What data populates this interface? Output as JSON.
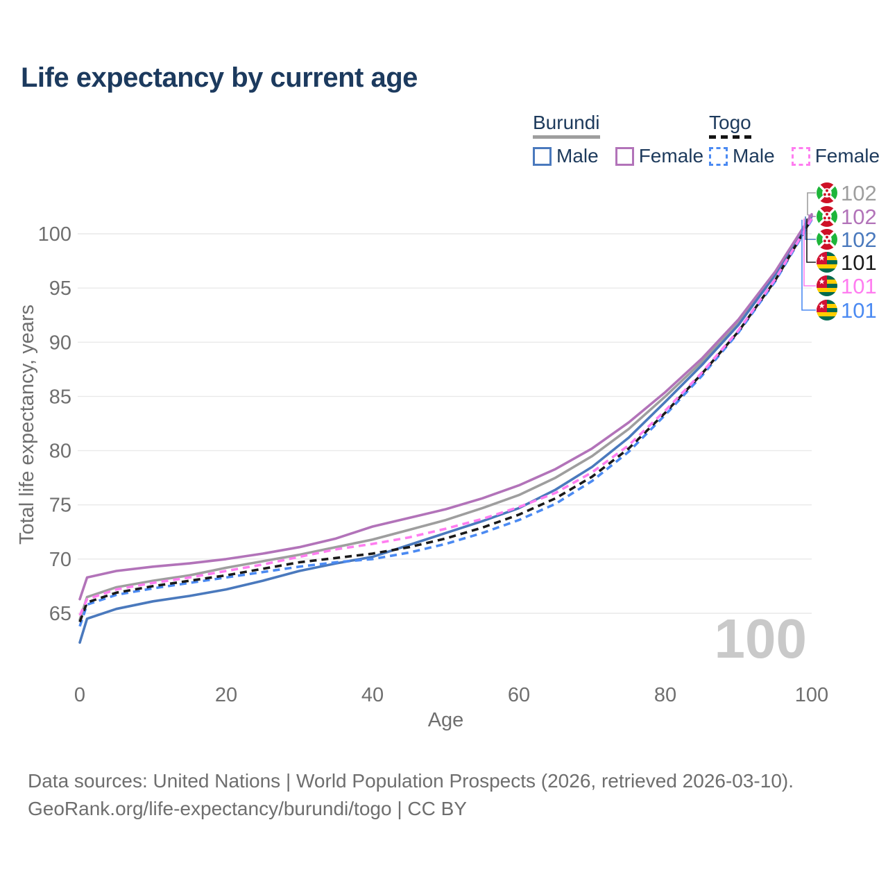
{
  "title": "Life expectancy by current age",
  "legend": {
    "position": "top-right",
    "groups": [
      {
        "country": "Burundi",
        "line_style": "solid",
        "underline_color": "#9e9e9e",
        "items": [
          {
            "label": "Male",
            "color": "#4a79bd",
            "dash": false
          },
          {
            "label": "Female",
            "color": "#b273b9",
            "dash": false
          }
        ]
      },
      {
        "country": "Togo",
        "line_style": "dashed",
        "underline_color": "#141414",
        "items": [
          {
            "label": "Male",
            "color": "#4b8af2",
            "dash": true
          },
          {
            "label": "Female",
            "color": "#ff7df0",
            "dash": true
          }
        ]
      }
    ]
  },
  "chart_data": {
    "type": "line",
    "title": "Life expectancy by current age",
    "xlabel": "Age",
    "ylabel": "Total life expectancy, years",
    "x_ticks": [
      0,
      20,
      40,
      60,
      80,
      100
    ],
    "y_ticks": [
      65,
      70,
      75,
      80,
      85,
      90,
      95,
      100
    ],
    "xlim": [
      0,
      100
    ],
    "ylim": [
      62,
      103
    ],
    "grid": "horizontal",
    "legend_position": "top-right",
    "watermark": "100",
    "x": [
      0,
      1,
      5,
      10,
      15,
      20,
      25,
      30,
      35,
      40,
      45,
      50,
      55,
      60,
      65,
      70,
      75,
      80,
      85,
      90,
      95,
      100
    ],
    "series": [
      {
        "id": "burundi-all",
        "name": "Burundi (all)",
        "country": "Burundi",
        "flag": "burundi",
        "color": "#9e9e9e",
        "dash": "solid",
        "end_label": "102",
        "values": [
          64.4,
          66.5,
          67.4,
          68.0,
          68.5,
          69.2,
          69.8,
          70.4,
          71.1,
          71.8,
          72.7,
          73.6,
          74.7,
          75.9,
          77.5,
          79.5,
          82.0,
          85.0,
          88.2,
          91.9,
          96.4,
          101.7
        ]
      },
      {
        "id": "burundi-female",
        "name": "Burundi Female",
        "country": "Burundi",
        "flag": "burundi",
        "color": "#b273b9",
        "dash": "solid",
        "end_label": "102",
        "values": [
          66.3,
          68.3,
          68.9,
          69.3,
          69.6,
          70.0,
          70.5,
          71.1,
          71.9,
          73.0,
          73.8,
          74.6,
          75.6,
          76.8,
          78.3,
          80.2,
          82.6,
          85.4,
          88.5,
          92.1,
          96.5,
          101.8
        ]
      },
      {
        "id": "burundi-male",
        "name": "Burundi Male",
        "country": "Burundi",
        "flag": "burundi",
        "color": "#4a79bd",
        "dash": "solid",
        "end_label": "102",
        "values": [
          62.3,
          64.5,
          65.4,
          66.1,
          66.6,
          67.2,
          68.0,
          68.9,
          69.6,
          70.2,
          71.3,
          72.4,
          73.5,
          74.7,
          76.4,
          78.5,
          81.2,
          84.5,
          87.9,
          91.6,
          96.2,
          101.6
        ]
      },
      {
        "id": "togo-all",
        "name": "Togo (all)",
        "country": "Togo",
        "flag": "togo",
        "color": "#1a1a1a",
        "dash": "dashed",
        "end_label": "101",
        "values": [
          64.2,
          66.0,
          66.9,
          67.5,
          68.0,
          68.5,
          69.1,
          69.7,
          70.1,
          70.5,
          71.1,
          71.9,
          72.9,
          74.1,
          75.6,
          77.6,
          80.2,
          83.5,
          87.1,
          91.0,
          95.7,
          101.4
        ]
      },
      {
        "id": "togo-female",
        "name": "Togo Female",
        "country": "Togo",
        "flag": "togo",
        "color": "#ff7df0",
        "dash": "dashed",
        "end_label": "101",
        "values": [
          64.8,
          66.3,
          67.2,
          67.8,
          68.3,
          68.9,
          69.5,
          70.2,
          70.9,
          71.4,
          72.0,
          72.8,
          73.7,
          74.8,
          76.1,
          78.0,
          80.5,
          83.7,
          87.2,
          91.1,
          95.8,
          101.4
        ]
      },
      {
        "id": "togo-male",
        "name": "Togo Male",
        "country": "Togo",
        "flag": "togo",
        "color": "#4b8af2",
        "dash": "dashed",
        "end_label": "101",
        "values": [
          63.8,
          65.8,
          66.7,
          67.3,
          67.8,
          68.3,
          68.8,
          69.3,
          69.7,
          70.0,
          70.6,
          71.4,
          72.4,
          73.6,
          75.1,
          77.2,
          79.9,
          83.3,
          86.9,
          90.9,
          95.6,
          101.3
        ]
      }
    ]
  },
  "colors": {
    "title_navy": "#1c3a5e",
    "axis_gray": "#6f6f6f",
    "grid_gray": "#e9e9e9",
    "watermark_gray": "#c9c9c9",
    "burundi_flag_red": "#ce1126",
    "burundi_flag_green": "#1eb53a",
    "togo_flag_green": "#006a4e",
    "togo_flag_yellow": "#ffce00",
    "togo_flag_red": "#d21034"
  },
  "footer": {
    "line1": "Data sources: United Nations | World Population Prospects (2026, retrieved 2026-03-10).",
    "line2": "GeoRank.org/life-expectancy/burundi/togo | CC BY"
  }
}
